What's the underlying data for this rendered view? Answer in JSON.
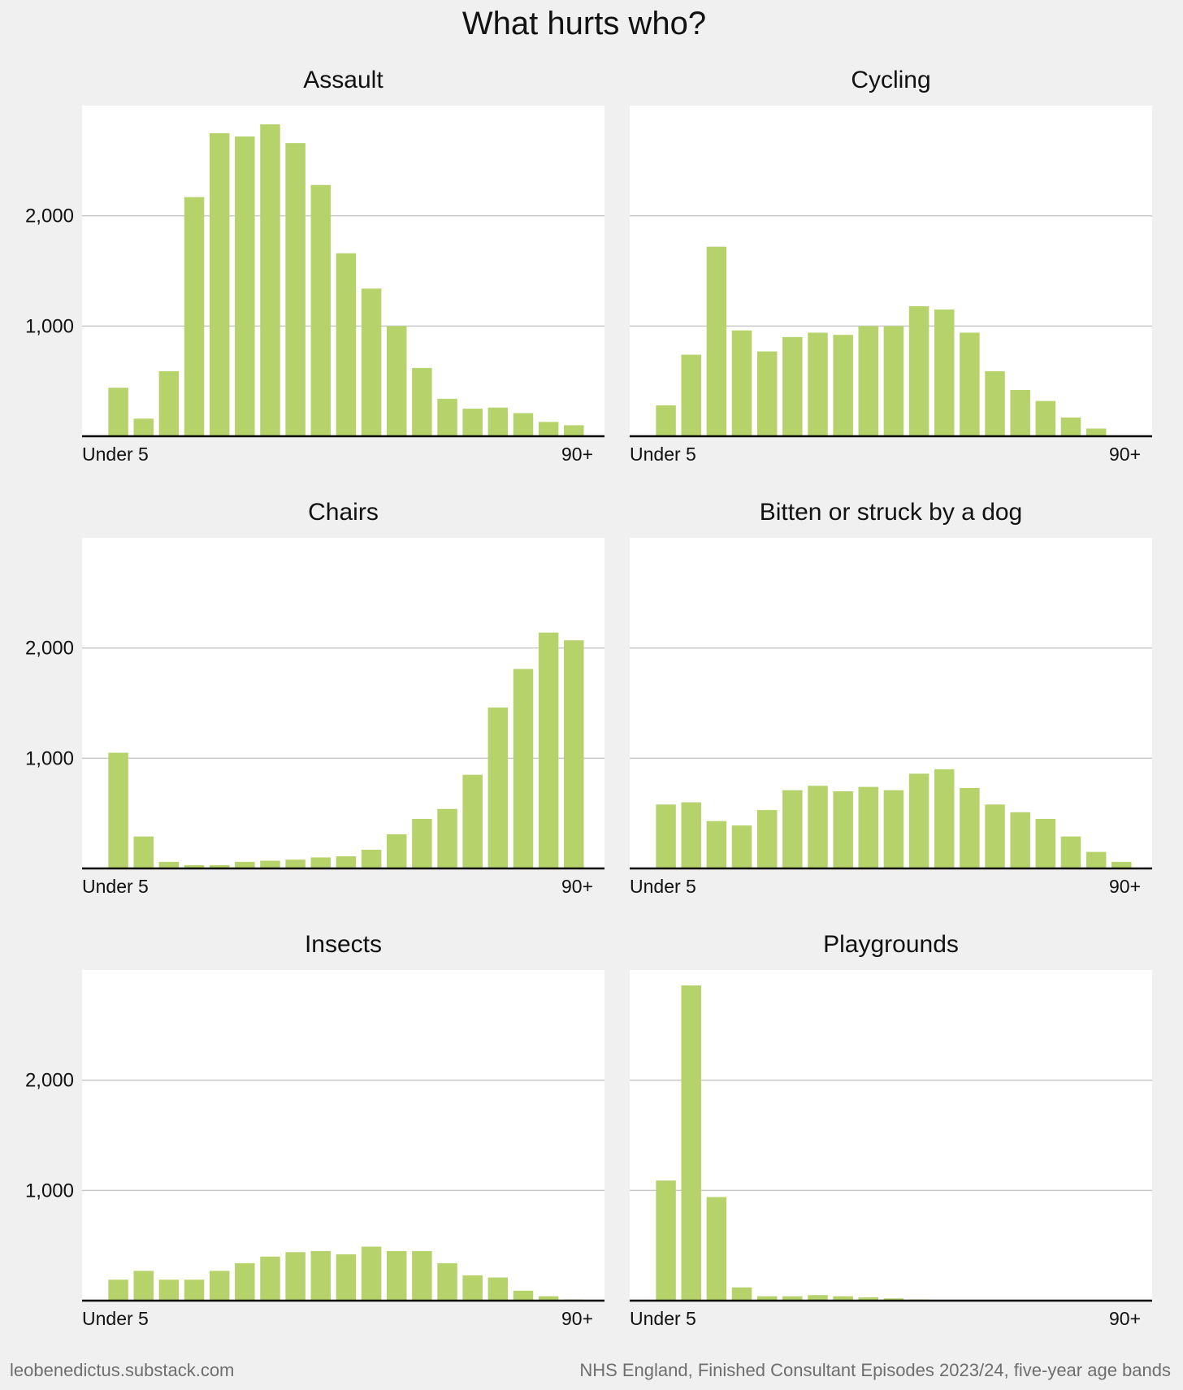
{
  "title": "What hurts who?",
  "footer": {
    "left": "leobenedictus.substack.com",
    "right": "NHS England, Finished Consultant Episodes 2023/24, five-year age bands"
  },
  "colors": {
    "bar": "#b6d36b",
    "grid": "#c8c8c8",
    "axis": "#000000",
    "panel_bg": "#ffffff",
    "page_bg": "#f0f0f0"
  },
  "chart_data": [
    {
      "type": "bar",
      "title": "Assault",
      "x_first_label": "Under 5",
      "x_last_label": "90+",
      "y_ticks": [
        1000,
        2000
      ],
      "y_tick_labels": [
        "1,000",
        "2,000"
      ],
      "ylim": [
        0,
        3000
      ],
      "values": [
        440,
        160,
        590,
        2170,
        2750,
        2720,
        2830,
        2660,
        2280,
        1660,
        1340,
        1000,
        620,
        340,
        250,
        260,
        210,
        130,
        100
      ]
    },
    {
      "type": "bar",
      "title": "Cycling",
      "x_first_label": "Under 5",
      "x_last_label": "90+",
      "y_ticks": [
        1000,
        2000
      ],
      "y_tick_labels": [
        "",
        ""
      ],
      "ylim": [
        0,
        3000
      ],
      "values": [
        280,
        740,
        1720,
        960,
        770,
        900,
        940,
        920,
        1000,
        1000,
        1180,
        1150,
        940,
        590,
        420,
        320,
        170,
        70,
        0
      ]
    },
    {
      "type": "bar",
      "title": "Chairs",
      "x_first_label": "Under 5",
      "x_last_label": "90+",
      "y_ticks": [
        1000,
        2000
      ],
      "y_tick_labels": [
        "1,000",
        "2,000"
      ],
      "ylim": [
        0,
        3000
      ],
      "values": [
        1050,
        290,
        60,
        30,
        30,
        60,
        70,
        80,
        100,
        110,
        170,
        310,
        450,
        540,
        850,
        1460,
        1810,
        2140,
        2070
      ]
    },
    {
      "type": "bar",
      "title": "Bitten or struck by a dog",
      "x_first_label": "Under 5",
      "x_last_label": "90+",
      "y_ticks": [
        1000,
        2000
      ],
      "y_tick_labels": [
        "",
        ""
      ],
      "ylim": [
        0,
        3000
      ],
      "values": [
        580,
        600,
        430,
        390,
        530,
        710,
        750,
        700,
        740,
        710,
        860,
        900,
        730,
        580,
        510,
        450,
        290,
        150,
        60
      ]
    },
    {
      "type": "bar",
      "title": "Insects",
      "x_first_label": "Under 5",
      "x_last_label": "90+",
      "y_ticks": [
        1000,
        2000
      ],
      "y_tick_labels": [
        "1,000",
        "2,000"
      ],
      "ylim": [
        0,
        3000
      ],
      "values": [
        190,
        270,
        190,
        190,
        270,
        340,
        400,
        440,
        450,
        420,
        490,
        450,
        450,
        340,
        230,
        210,
        90,
        40,
        10
      ]
    },
    {
      "type": "bar",
      "title": "Playgrounds",
      "x_first_label": "Under 5",
      "x_last_label": "90+",
      "y_ticks": [
        1000,
        2000
      ],
      "y_tick_labels": [
        "",
        ""
      ],
      "ylim": [
        0,
        3000
      ],
      "values": [
        1090,
        2860,
        940,
        120,
        40,
        40,
        50,
        40,
        30,
        20,
        10,
        0,
        0,
        0,
        0,
        0,
        0,
        0,
        0
      ]
    }
  ]
}
